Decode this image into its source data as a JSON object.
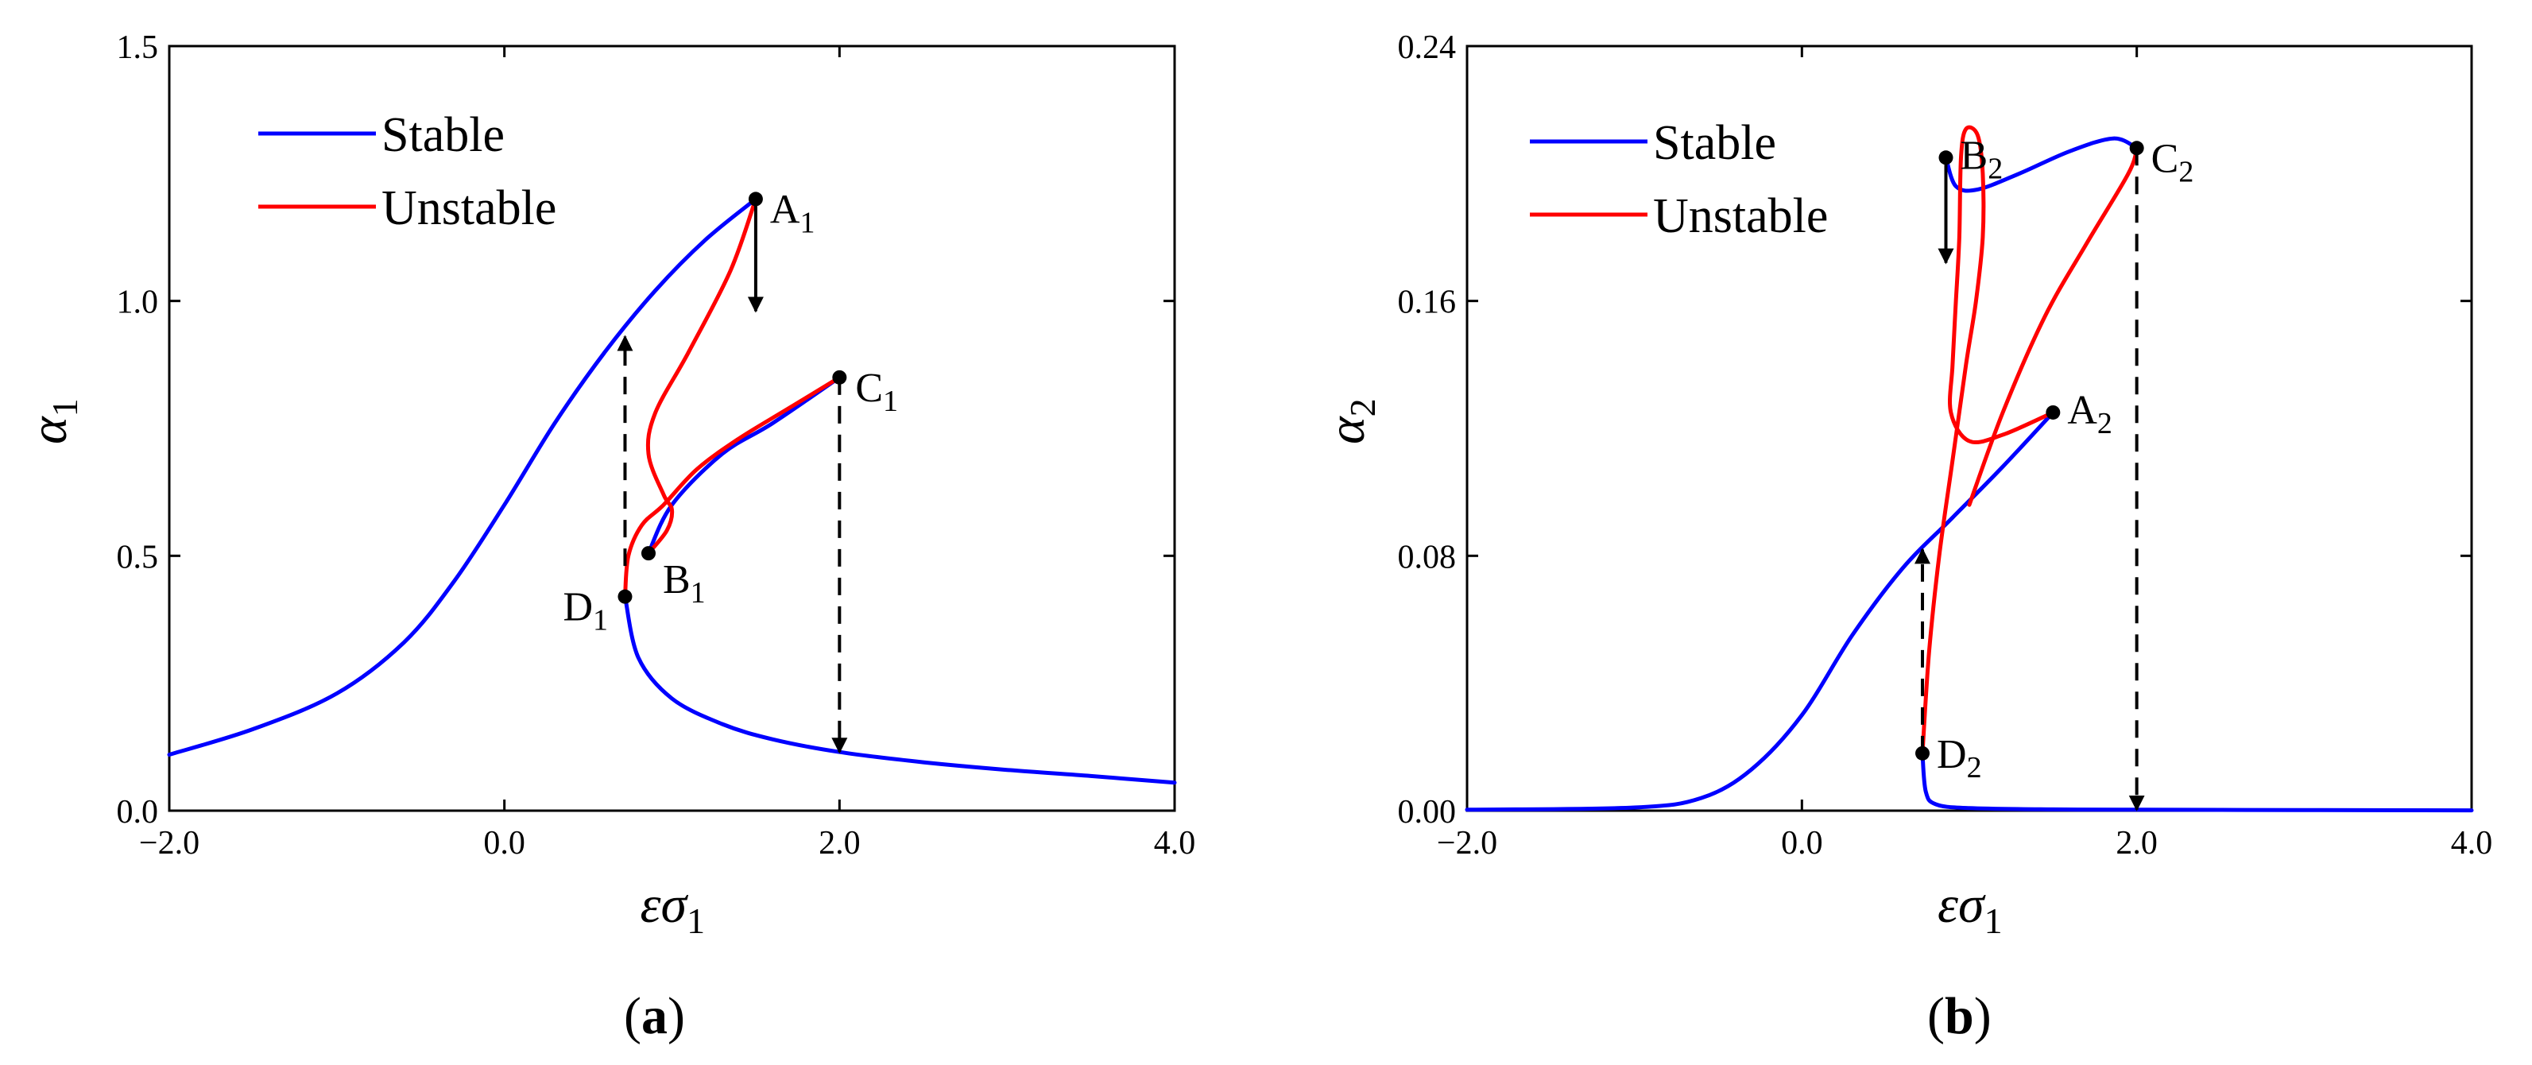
{
  "colors": {
    "stable": "#0000ff",
    "unstable": "#ff0000",
    "axis": "#000000",
    "marker": "#000000"
  },
  "chart_data": [
    {
      "type": "line",
      "panel": "a",
      "caption": {
        "open": "(",
        "letter": "a",
        "close": ")"
      },
      "xlabel": "εσ",
      "xlabel_sub": "1",
      "ylabel": "α",
      "ylabel_sub": "1",
      "xlim": [
        -2.0,
        4.0
      ],
      "ylim": [
        0.0,
        1.5
      ],
      "xticks": [
        -2.0,
        0.0,
        2.0,
        4.0
      ],
      "xtick_labels": [
        "−2.0",
        "0.0",
        "2.0",
        "4.0"
      ],
      "yticks": [
        0.0,
        0.5,
        1.0,
        1.5
      ],
      "ytick_labels": [
        "0.0",
        "0.5",
        "1.0",
        "1.5"
      ],
      "legend": {
        "position": "top-left",
        "entries": [
          {
            "label": "Stable",
            "color": "#0000ff"
          },
          {
            "label": "Unstable",
            "color": "#ff0000"
          }
        ]
      },
      "series": [
        {
          "name": "Stable",
          "color": "#0000ff",
          "points": [
            [
              -2.0,
              0.11
            ],
            [
              -1.5,
              0.16
            ],
            [
              -1.0,
              0.23
            ],
            [
              -0.6,
              0.33
            ],
            [
              -0.3,
              0.45
            ],
            [
              0.0,
              0.6
            ],
            [
              0.3,
              0.76
            ],
            [
              0.6,
              0.9
            ],
            [
              0.9,
              1.02
            ],
            [
              1.2,
              1.12
            ],
            [
              1.5,
              1.2
            ]
          ]
        },
        {
          "name": "Stable",
          "color": "#0000ff",
          "points": [
            [
              0.72,
              0.42
            ],
            [
              0.8,
              0.3
            ],
            [
              1.0,
              0.22
            ],
            [
              1.3,
              0.17
            ],
            [
              1.6,
              0.14
            ],
            [
              2.0,
              0.115
            ],
            [
              2.5,
              0.095
            ],
            [
              3.0,
              0.08
            ],
            [
              3.5,
              0.068
            ],
            [
              4.0,
              0.055
            ]
          ]
        },
        {
          "name": "Stable",
          "color": "#0000ff",
          "points": [
            [
              0.86,
              0.505
            ],
            [
              1.0,
              0.6
            ],
            [
              1.3,
              0.7
            ],
            [
              1.6,
              0.76
            ],
            [
              2.0,
              0.85
            ]
          ]
        },
        {
          "name": "Unstable",
          "color": "#ff0000",
          "points": [
            [
              1.5,
              1.2
            ],
            [
              1.35,
              1.06
            ],
            [
              1.1,
              0.9
            ],
            [
              0.9,
              0.78
            ],
            [
              0.86,
              0.7
            ],
            [
              0.95,
              0.62
            ],
            [
              1.0,
              0.59
            ],
            [
              0.97,
              0.55
            ],
            [
              0.86,
              0.505
            ]
          ]
        },
        {
          "name": "Unstable",
          "color": "#ff0000",
          "points": [
            [
              0.72,
              0.42
            ],
            [
              0.74,
              0.5
            ],
            [
              0.82,
              0.56
            ],
            [
              0.95,
              0.6
            ],
            [
              1.15,
              0.67
            ],
            [
              1.4,
              0.73
            ],
            [
              1.7,
              0.79
            ],
            [
              2.0,
              0.85
            ]
          ]
        }
      ],
      "points": [
        {
          "label": "A",
          "sub": "1",
          "x": 1.5,
          "y": 1.2
        },
        {
          "label": "B",
          "sub": "1",
          "x": 0.86,
          "y": 0.505
        },
        {
          "label": "C",
          "sub": "1",
          "x": 2.0,
          "y": 0.85
        },
        {
          "label": "D",
          "sub": "1",
          "x": 0.72,
          "y": 0.42
        }
      ],
      "arrows": [
        {
          "style": "solid",
          "x": 1.5,
          "from": 1.2,
          "to": 0.98
        },
        {
          "style": "dashed",
          "x": 2.0,
          "from": 0.85,
          "to": 0.115
        },
        {
          "style": "dashed",
          "x": 0.72,
          "from": 0.48,
          "to": 0.93
        }
      ]
    },
    {
      "type": "line",
      "panel": "b",
      "caption": {
        "open": "(",
        "letter": "b",
        "close": ")"
      },
      "xlabel": "εσ",
      "xlabel_sub": "1",
      "ylabel": "α",
      "ylabel_sub": "2",
      "xlim": [
        -2.0,
        4.0
      ],
      "ylim": [
        0.0,
        0.24
      ],
      "xticks": [
        -2.0,
        0.0,
        2.0,
        4.0
      ],
      "xtick_labels": [
        "−2.0",
        "0.0",
        "2.0",
        "4.0"
      ],
      "yticks": [
        0.0,
        0.08,
        0.16,
        0.24
      ],
      "ytick_labels": [
        "0.00",
        "0.08",
        "0.16",
        "0.24"
      ],
      "legend": {
        "position": "top-left",
        "entries": [
          {
            "label": "Stable",
            "color": "#0000ff"
          },
          {
            "label": "Unstable",
            "color": "#ff0000"
          }
        ]
      },
      "series": [
        {
          "name": "Stable",
          "color": "#0000ff",
          "points": [
            [
              -2.0,
              0.0003
            ],
            [
              -1.0,
              0.001
            ],
            [
              -0.6,
              0.004
            ],
            [
              -0.3,
              0.013
            ],
            [
              0.0,
              0.03
            ],
            [
              0.3,
              0.055
            ],
            [
              0.6,
              0.076
            ],
            [
              0.9,
              0.092
            ],
            [
              1.2,
              0.108
            ],
            [
              1.5,
              0.125
            ]
          ]
        },
        {
          "name": "Stable",
          "color": "#0000ff",
          "points": [
            [
              0.72,
              0.018
            ],
            [
              0.74,
              0.006
            ],
            [
              0.8,
              0.002
            ],
            [
              1.0,
              0.0008
            ],
            [
              1.5,
              0.0004
            ],
            [
              2.0,
              0.0003
            ],
            [
              3.0,
              0.0002
            ],
            [
              4.0,
              0.0001
            ]
          ]
        },
        {
          "name": "Stable",
          "color": "#0000ff",
          "points": [
            [
              0.86,
              0.205
            ],
            [
              0.92,
              0.196
            ],
            [
              1.05,
              0.195
            ],
            [
              1.3,
              0.2
            ],
            [
              1.6,
              0.207
            ],
            [
              1.86,
              0.211
            ],
            [
              2.0,
              0.208
            ]
          ]
        },
        {
          "name": "Unstable",
          "color": "#ff0000",
          "points": [
            [
              0.72,
              0.018
            ],
            [
              0.76,
              0.05
            ],
            [
              0.82,
              0.08
            ],
            [
              0.9,
              0.11
            ],
            [
              0.98,
              0.14
            ],
            [
              1.04,
              0.16
            ],
            [
              1.08,
              0.18
            ],
            [
              1.08,
              0.2
            ],
            [
              1.05,
              0.212
            ],
            [
              0.98,
              0.214
            ],
            [
              0.95,
              0.205
            ],
            [
              0.94,
              0.18
            ],
            [
              0.92,
              0.16
            ],
            [
              0.9,
              0.14
            ],
            [
              0.89,
              0.125
            ],
            [
              1.0,
              0.116
            ],
            [
              1.2,
              0.118
            ],
            [
              1.5,
              0.125
            ]
          ]
        },
        {
          "name": "Unstable",
          "color": "#ff0000",
          "points": [
            [
              1.0,
              0.096
            ],
            [
              1.2,
              0.125
            ],
            [
              1.45,
              0.155
            ],
            [
              1.7,
              0.178
            ],
            [
              1.95,
              0.2
            ],
            [
              2.0,
              0.208
            ]
          ]
        }
      ],
      "points": [
        {
          "label": "A",
          "sub": "2",
          "x": 1.5,
          "y": 0.125
        },
        {
          "label": "B",
          "sub": "2",
          "x": 0.86,
          "y": 0.205
        },
        {
          "label": "C",
          "sub": "2",
          "x": 2.0,
          "y": 0.208
        },
        {
          "label": "D",
          "sub": "2",
          "x": 0.72,
          "y": 0.018
        }
      ],
      "arrows": [
        {
          "style": "solid",
          "x": 0.86,
          "from": 0.205,
          "to": 0.172
        },
        {
          "style": "dashed",
          "x": 2.0,
          "from": 0.208,
          "to": 0.0003
        },
        {
          "style": "dashed",
          "x": 0.72,
          "from": 0.018,
          "to": 0.082
        }
      ]
    }
  ]
}
